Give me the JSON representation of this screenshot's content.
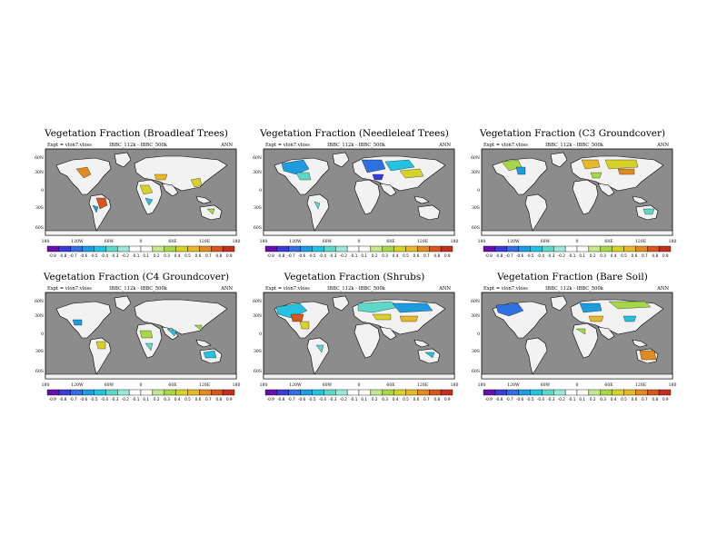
{
  "colorbar": {
    "colors": [
      "#6a0dad",
      "#3b3bd9",
      "#2f6fe0",
      "#1f9be0",
      "#22c2e0",
      "#5dd8c8",
      "#9be8d8",
      "#ffffff",
      "#ffffff",
      "#c8e68a",
      "#a6d64a",
      "#d7d22a",
      "#e6b82a",
      "#e08a22",
      "#d8561e",
      "#c0301c"
    ]
  },
  "map": {
    "ocean_color": "#8c8c8c",
    "land_color": "#f2f2f2"
  },
  "panels": [
    {
      "id": "broadleaf",
      "title": "Vegetation Fraction (Broadleaf Trees)",
      "expt": "Expt = vlon7.vloss",
      "diff": "IBBC_112k - IBBC_500k",
      "season": "ANN",
      "lat_labels": [
        "60N",
        "30N",
        "0",
        "30S",
        "60S"
      ],
      "lon_labels": [
        "180",
        "120W",
        "60W",
        "0",
        "60E",
        "120E",
        "180"
      ],
      "cbar_labels": [
        "-0.9",
        "-0.8",
        "-0.7",
        "-0.6",
        "-0.5",
        "-0.4",
        "-0.3",
        "-0.2",
        "-0.1",
        "0.1",
        "0.2",
        "0.3",
        "0.4",
        "0.5",
        "0.6",
        "0.7",
        "0.8",
        "0.9"
      ]
    },
    {
      "id": "needleleaf",
      "title": "Vegetation Fraction (Needleleaf Trees)",
      "expt": "Expt = vlon7.vloss",
      "diff": "IBBC_112k - IBBC_500k",
      "season": "ANN",
      "lat_labels": [
        "60N",
        "30N",
        "0",
        "30S",
        "60S"
      ],
      "lon_labels": [
        "180",
        "120W",
        "60W",
        "0",
        "60E",
        "120E",
        "180"
      ],
      "cbar_labels": [
        "-0.9",
        "-0.8",
        "-0.7",
        "-0.6",
        "-0.5",
        "-0.4",
        "-0.3",
        "-0.2",
        "-0.1",
        "0.1",
        "0.2",
        "0.3",
        "0.4",
        "0.5",
        "0.6",
        "0.7",
        "0.8",
        "0.9"
      ]
    },
    {
      "id": "c3",
      "title": "Vegetation Fraction (C3 Groundcover)",
      "expt": "Expt = vlon7.vloss",
      "diff": "IBBC_112k - IBBC_500k",
      "season": "ANN",
      "lat_labels": [
        "60N",
        "30N",
        "0",
        "30S",
        "60S"
      ],
      "lon_labels": [
        "180",
        "120W",
        "60W",
        "0",
        "60E",
        "120E",
        "180"
      ],
      "cbar_labels": [
        "-0.9",
        "-0.8",
        "-0.7",
        "-0.6",
        "-0.5",
        "-0.4",
        "-0.3",
        "-0.2",
        "-0.1",
        "0.1",
        "0.2",
        "0.3",
        "0.4",
        "0.5",
        "0.6",
        "0.7",
        "0.8",
        "0.9"
      ]
    },
    {
      "id": "c4",
      "title": "Vegetation Fraction (C4 Groundcover)",
      "expt": "Expt = vlon7.vloss",
      "diff": "IBBC_112k - IBBC_500k",
      "season": "ANN",
      "lat_labels": [
        "60N",
        "30N",
        "0",
        "30S",
        "60S"
      ],
      "lon_labels": [
        "180",
        "120W",
        "60W",
        "0",
        "60E",
        "120E",
        "180"
      ],
      "cbar_labels": [
        "-0.9",
        "-0.8",
        "-0.7",
        "-0.6",
        "-0.5",
        "-0.4",
        "-0.3",
        "-0.2",
        "-0.1",
        "0.1",
        "0.2",
        "0.3",
        "0.4",
        "0.5",
        "0.6",
        "0.7",
        "0.8",
        "0.9"
      ]
    },
    {
      "id": "shrubs",
      "title": "Vegetation Fraction (Shrubs)",
      "expt": "Expt = vlon7.vloss",
      "diff": "IBBC_112k - IBBC_500k",
      "season": "ANN",
      "lat_labels": [
        "60N",
        "30N",
        "0",
        "30S",
        "60S"
      ],
      "lon_labels": [
        "180",
        "120W",
        "60W",
        "0",
        "60E",
        "120E",
        "180"
      ],
      "cbar_labels": [
        "-0.9",
        "-0.8",
        "-0.7",
        "-0.6",
        "-0.5",
        "-0.4",
        "-0.3",
        "-0.2",
        "-0.1",
        "0.1",
        "0.2",
        "0.3",
        "0.4",
        "0.5",
        "0.6",
        "0.7",
        "0.8",
        "0.9"
      ]
    },
    {
      "id": "bare",
      "title": "Vegetation Fraction (Bare Soil)",
      "expt": "Expt = vlon7.vloss",
      "diff": "IBBC_112k - IBBC_500k",
      "season": "ANN",
      "lat_labels": [
        "60N",
        "30N",
        "0",
        "30S",
        "60S"
      ],
      "lon_labels": [
        "180",
        "120W",
        "60W",
        "0",
        "60E",
        "120E",
        "180"
      ],
      "cbar_labels": [
        "-0.9",
        "-0.8",
        "-0.7",
        "-0.6",
        "-0.5",
        "-0.4",
        "-0.3",
        "-0.2",
        "-0.1",
        "0.1",
        "0.2",
        "0.3",
        "0.4",
        "0.5",
        "0.6",
        "0.7",
        "0.8",
        "0.9"
      ]
    }
  ]
}
